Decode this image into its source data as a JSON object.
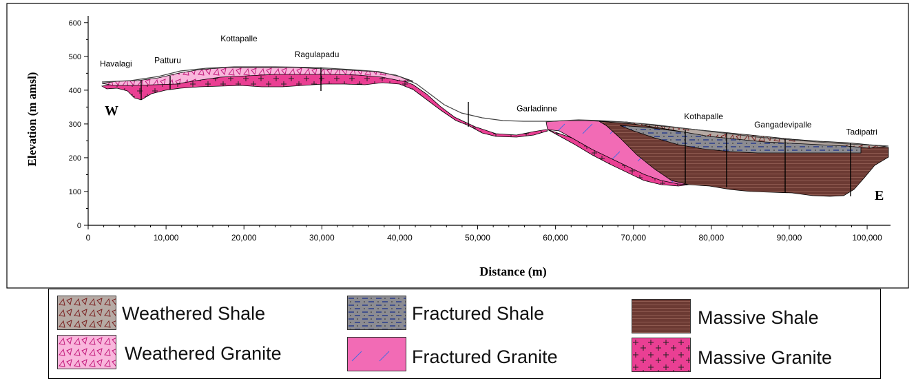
{
  "section": {
    "xlabel": "Distance (m)",
    "ylabel": "Elevation (m amsl)",
    "west_marker": "W",
    "east_marker": "E",
    "x_ticks": [
      "0",
      "10,000",
      "20,000",
      "30,000",
      "40,000",
      "50,000",
      "60,000",
      "70,000",
      "80,000",
      "90,000",
      "100,000"
    ],
    "y_ticks": [
      "0",
      "100",
      "200",
      "300",
      "400",
      "500",
      "600"
    ],
    "x_range": [
      0,
      103000
    ],
    "y_range": [
      0,
      620
    ],
    "villages": [
      {
        "name": "Havalagi",
        "x": 1500,
        "y": 470
      },
      {
        "name": "Patturu",
        "x": 8500,
        "y": 480
      },
      {
        "name": "Kottapalle",
        "x": 17000,
        "y": 545
      },
      {
        "name": "Ragulapadu",
        "x": 26500,
        "y": 498
      },
      {
        "name": "Garladinne",
        "x": 55000,
        "y": 338
      },
      {
        "name": "Kothapalle",
        "x": 76500,
        "y": 314
      },
      {
        "name": "Gangadevipalle",
        "x": 85500,
        "y": 290
      },
      {
        "name": "Tadipatri",
        "x": 97300,
        "y": 268
      }
    ]
  },
  "legend": [
    {
      "label": "Weathered Shale",
      "pattern": "weathered-shale-pattern"
    },
    {
      "label": "Fractured Shale",
      "pattern": "fractured-shale-pattern"
    },
    {
      "label": "Massive Shale",
      "pattern": "massive-shale-pattern"
    },
    {
      "label": "Weathered Granite",
      "pattern": "weathered-granite-pattern"
    },
    {
      "label": "Fractured Granite",
      "pattern": "fractured-granite-pattern"
    },
    {
      "label": "Massive Granite",
      "pattern": "massive-granite-pattern"
    }
  ],
  "colors": {
    "granite": "#f26bb5",
    "massive_granite": "#ea3f93",
    "weathered_granite": "#f9b6dc",
    "shale_massive": "#6b3a33",
    "shale_fractured": "#8d8d93",
    "shale_weathered": "#b8aaa3"
  }
}
